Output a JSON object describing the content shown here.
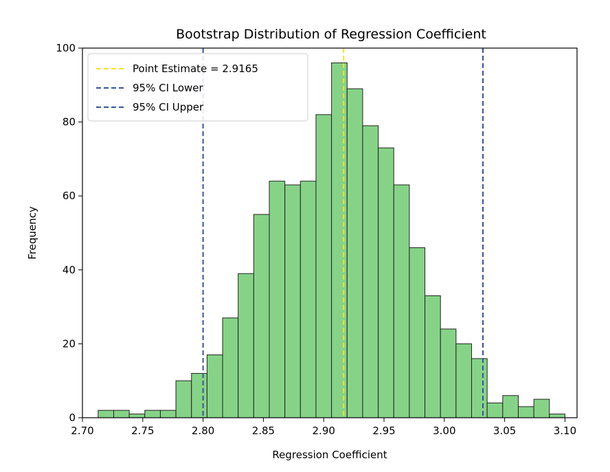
{
  "chart_data": {
    "type": "bar",
    "title": "Bootstrap Distribution of Regression Coefficient",
    "xlabel": "Regression Coefficient",
    "ylabel": "Frequency",
    "xlim": [
      2.7,
      3.11
    ],
    "ylim": [
      0,
      100
    ],
    "xticks": [
      "2.70",
      "2.75",
      "2.80",
      "2.85",
      "2.90",
      "2.95",
      "3.00",
      "3.05",
      "3.10"
    ],
    "yticks": [
      "0",
      "20",
      "40",
      "60",
      "80",
      "100"
    ],
    "bin_start": 2.713,
    "bin_width": 0.0129,
    "values": [
      2,
      2,
      1,
      2,
      2,
      10,
      12,
      17,
      27,
      39,
      55,
      64,
      63,
      64,
      82,
      96,
      89,
      79,
      73,
      63,
      46,
      33,
      24,
      20,
      16,
      4,
      6,
      3,
      5,
      1
    ],
    "bar_color": "#86d388",
    "bar_edge_color": "#222222",
    "vlines": [
      {
        "x": 2.9165,
        "label": "Point Estimate = 2.9165",
        "color": "#f5e02a"
      },
      {
        "x": 2.8,
        "label": "95% CI Lower",
        "color": "#36539a"
      },
      {
        "x": 3.032,
        "label": "95% CI Upper",
        "color": "#36539a"
      }
    ],
    "legend_position": "top-left",
    "grid": false
  }
}
